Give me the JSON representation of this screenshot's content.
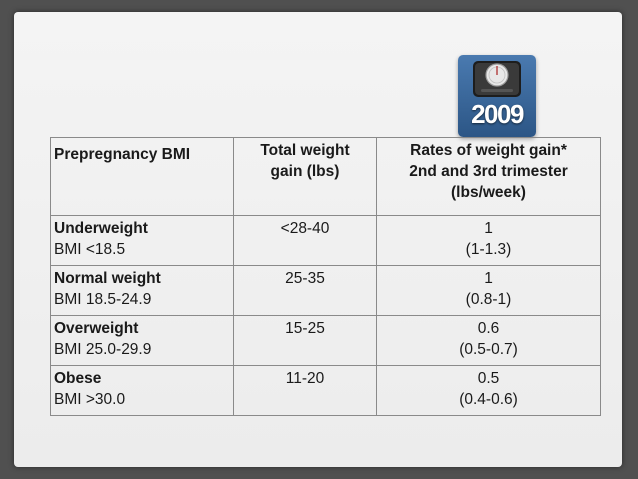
{
  "badge": {
    "year": "2009"
  },
  "table": {
    "headers": {
      "col1": "Prepregnancy BMI",
      "col2": [
        "Total weight",
        "gain (lbs)"
      ],
      "col3": [
        "Rates of weight gain*",
        "2nd and 3rd trimester",
        "(lbs/week)"
      ]
    },
    "rows": [
      {
        "category": "Underweight",
        "bmi": "BMI <18.5",
        "total": "<28-40",
        "rate": "1",
        "rate_range": "(1-1.3)"
      },
      {
        "category": "Normal weight",
        "bmi": "BMI 18.5-24.9",
        "total": "25-35",
        "rate": "1",
        "rate_range": "(0.8-1)"
      },
      {
        "category": "Overweight",
        "bmi": "BMI 25.0-29.9",
        "total": "15-25",
        "rate": "0.6",
        "rate_range": "(0.5-0.7)"
      },
      {
        "category": "Obese",
        "bmi": "BMI >30.0",
        "total": "11-20",
        "rate": "0.5",
        "rate_range": "(0.4-0.6)"
      }
    ]
  }
}
